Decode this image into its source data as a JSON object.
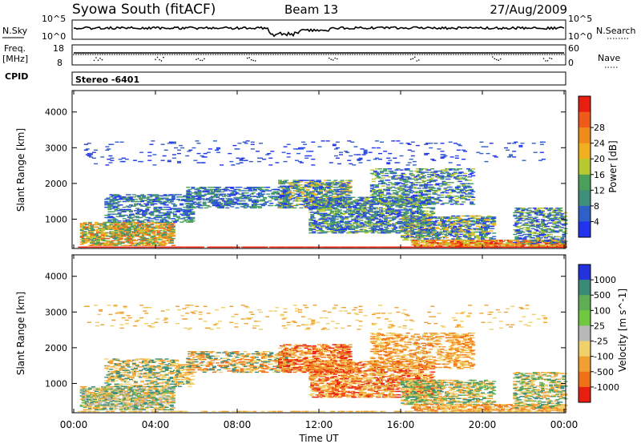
{
  "header": {
    "station": "Syowa South (fitACF)",
    "beam": "Beam 13",
    "date": "27/Aug/2009"
  },
  "upper_panels": {
    "nsky_label": "N.Sky",
    "nsky_ticks": [
      "10^5",
      "10^0"
    ],
    "nsearch_label": "N.Search",
    "nsearch_ticks": [
      "10^5",
      "10^0"
    ],
    "freq_label": "Freq.",
    "freq_unit": "[MHz]",
    "freq_ticks": [
      "18",
      "8"
    ],
    "nave_label": "Nave",
    "nave_ticks": [
      "60",
      "0"
    ],
    "cpid_label": "CPID",
    "cpid_value": "Stereo -6401"
  },
  "x_axis": {
    "title": "Time UT",
    "ticks": [
      "00:00",
      "04:00",
      "08:00",
      "12:00",
      "16:00",
      "20:00",
      "00:00"
    ]
  },
  "chart_data": [
    {
      "type": "heatmap",
      "title": "",
      "xlabel": "Time UT",
      "ylabel": "Slant Range [km]",
      "xlim": [
        0,
        24
      ],
      "ylim": [
        180,
        4600
      ],
      "yticks": [
        1000,
        2000,
        3000,
        4000
      ],
      "colorbar": {
        "label": "Power [dB]",
        "ticks": [
          "4",
          "8",
          "12",
          "16",
          "20",
          "24",
          "28"
        ],
        "colors": [
          "#2233ee",
          "#2f5fc8",
          "#3f8f7a",
          "#4aa05a",
          "#b8c830",
          "#f0b020",
          "#f08a1a",
          "#f05a18",
          "#e81e10"
        ]
      },
      "scatter_regions": [
        {
          "t0": 0.2,
          "t1": 24.0,
          "r0": 200,
          "r1": 230,
          "density": 0.9,
          "levels": [
            8
          ]
        },
        {
          "t0": 0.3,
          "t1": 4.8,
          "r0": 250,
          "r1": 900,
          "density": 0.55,
          "levels": [
            2,
            3,
            4,
            5,
            6,
            7
          ]
        },
        {
          "t0": 1.5,
          "t1": 5.8,
          "r0": 900,
          "r1": 1700,
          "density": 0.32,
          "levels": [
            0,
            1,
            2,
            3
          ]
        },
        {
          "t0": 5.5,
          "t1": 10.5,
          "r0": 1300,
          "r1": 1900,
          "density": 0.35,
          "levels": [
            0,
            1,
            2,
            3
          ]
        },
        {
          "t0": 10.0,
          "t1": 13.5,
          "r0": 1300,
          "r1": 2100,
          "density": 0.45,
          "levels": [
            0,
            1,
            2,
            3,
            4,
            5
          ]
        },
        {
          "t0": 11.5,
          "t1": 17.5,
          "r0": 600,
          "r1": 1600,
          "density": 0.45,
          "levels": [
            0,
            1,
            2,
            3,
            4
          ]
        },
        {
          "t0": 14.5,
          "t1": 19.5,
          "r0": 1400,
          "r1": 2400,
          "density": 0.3,
          "levels": [
            0,
            1,
            2,
            3,
            4
          ]
        },
        {
          "t0": 16.0,
          "t1": 20.5,
          "r0": 400,
          "r1": 1100,
          "density": 0.4,
          "levels": [
            0,
            1,
            2,
            3,
            4,
            5
          ]
        },
        {
          "t0": 16.5,
          "t1": 24.0,
          "r0": 230,
          "r1": 400,
          "density": 0.6,
          "levels": [
            4,
            5,
            6,
            7,
            8
          ]
        },
        {
          "t0": 21.5,
          "t1": 24.0,
          "r0": 300,
          "r1": 1300,
          "density": 0.35,
          "levels": [
            0,
            1,
            2,
            3,
            4
          ]
        },
        {
          "t0": 0.5,
          "t1": 23.0,
          "r0": 2500,
          "r1": 3200,
          "density": 0.04,
          "levels": [
            0,
            1
          ]
        }
      ]
    },
    {
      "type": "heatmap",
      "title": "",
      "xlabel": "Time UT",
      "ylabel": "Slant Range [km]",
      "xlim": [
        0,
        24
      ],
      "ylim": [
        180,
        4600
      ],
      "yticks": [
        1000,
        2000,
        3000,
        4000
      ],
      "colorbar": {
        "label": "Velocity [m s^-1]",
        "ticks": [
          "1000",
          "500",
          "100",
          "25",
          "-25",
          "-100",
          "-500",
          "-1000"
        ],
        "colors": [
          "#2233dd",
          "#3a8a78",
          "#5fae55",
          "#70c840",
          "#b8b8b8",
          "#f0d068",
          "#f0a030",
          "#f07018",
          "#e81e10"
        ]
      },
      "scatter_regions": [
        {
          "t0": 0.2,
          "t1": 24.0,
          "r0": 200,
          "r1": 230,
          "density": 0.5,
          "levels": [
            5,
            6
          ]
        },
        {
          "t0": 0.3,
          "t1": 4.8,
          "r0": 250,
          "r1": 900,
          "density": 0.55,
          "levels": [
            1,
            2,
            4,
            5,
            6
          ]
        },
        {
          "t0": 1.5,
          "t1": 5.8,
          "r0": 900,
          "r1": 1700,
          "density": 0.32,
          "levels": [
            5,
            6,
            1
          ]
        },
        {
          "t0": 5.5,
          "t1": 10.5,
          "r0": 1300,
          "r1": 1900,
          "density": 0.35,
          "levels": [
            5,
            6,
            7,
            1
          ]
        },
        {
          "t0": 10.0,
          "t1": 13.5,
          "r0": 1300,
          "r1": 2100,
          "density": 0.45,
          "levels": [
            6,
            7,
            8,
            5
          ]
        },
        {
          "t0": 11.5,
          "t1": 17.5,
          "r0": 600,
          "r1": 1600,
          "density": 0.45,
          "levels": [
            6,
            7,
            5,
            8
          ]
        },
        {
          "t0": 14.5,
          "t1": 19.5,
          "r0": 1400,
          "r1": 2400,
          "density": 0.3,
          "levels": [
            5,
            6,
            7
          ]
        },
        {
          "t0": 16.0,
          "t1": 20.5,
          "r0": 400,
          "r1": 1100,
          "density": 0.4,
          "levels": [
            5,
            6,
            1,
            2
          ]
        },
        {
          "t0": 16.5,
          "t1": 24.0,
          "r0": 230,
          "r1": 400,
          "density": 0.5,
          "levels": [
            5,
            6,
            7
          ]
        },
        {
          "t0": 21.5,
          "t1": 24.0,
          "r0": 300,
          "r1": 1300,
          "density": 0.35,
          "levels": [
            1,
            2,
            5,
            6
          ]
        },
        {
          "t0": 0.5,
          "t1": 23.0,
          "r0": 2500,
          "r1": 3200,
          "density": 0.04,
          "levels": [
            5,
            6
          ]
        }
      ]
    }
  ]
}
